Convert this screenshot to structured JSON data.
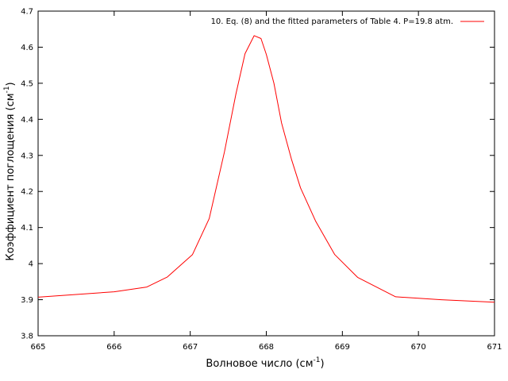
{
  "chart_data": {
    "type": "line",
    "xlabel": {
      "main": "Волновое число (см",
      "sup": "-1",
      "tail": ")"
    },
    "ylabel": {
      "main": "Коэффициент поглощения (см",
      "sup": "-1",
      "tail": ")"
    },
    "xlim": [
      665,
      671
    ],
    "ylim": [
      3.8,
      4.7
    ],
    "x_ticks": [
      "665",
      "666",
      "667",
      "668",
      "669",
      "670",
      "671"
    ],
    "y_ticks": [
      "3.8",
      "3.9",
      "4",
      "4.1",
      "4.2",
      "4.3",
      "4.4",
      "4.5",
      "4.6",
      "4.7"
    ],
    "grid": false,
    "legend_position": "top-right",
    "series": [
      {
        "name": "10. Eq. (8) and the fitted parameters of Table 4. P=19.8 atm.",
        "color": "#ff0000",
        "x": [
          665.0,
          666.0,
          666.43,
          666.7,
          667.03,
          667.25,
          667.45,
          667.6,
          667.72,
          667.84,
          667.93,
          668.0,
          668.1,
          668.2,
          668.33,
          668.45,
          668.65,
          668.9,
          669.2,
          669.7,
          670.3,
          671.0
        ],
        "y": [
          3.907,
          3.922,
          3.935,
          3.963,
          4.025,
          4.125,
          4.31,
          4.47,
          4.582,
          4.632,
          4.624,
          4.58,
          4.5,
          4.39,
          4.29,
          4.21,
          4.117,
          4.025,
          3.962,
          3.908,
          3.9,
          3.893
        ]
      }
    ]
  }
}
